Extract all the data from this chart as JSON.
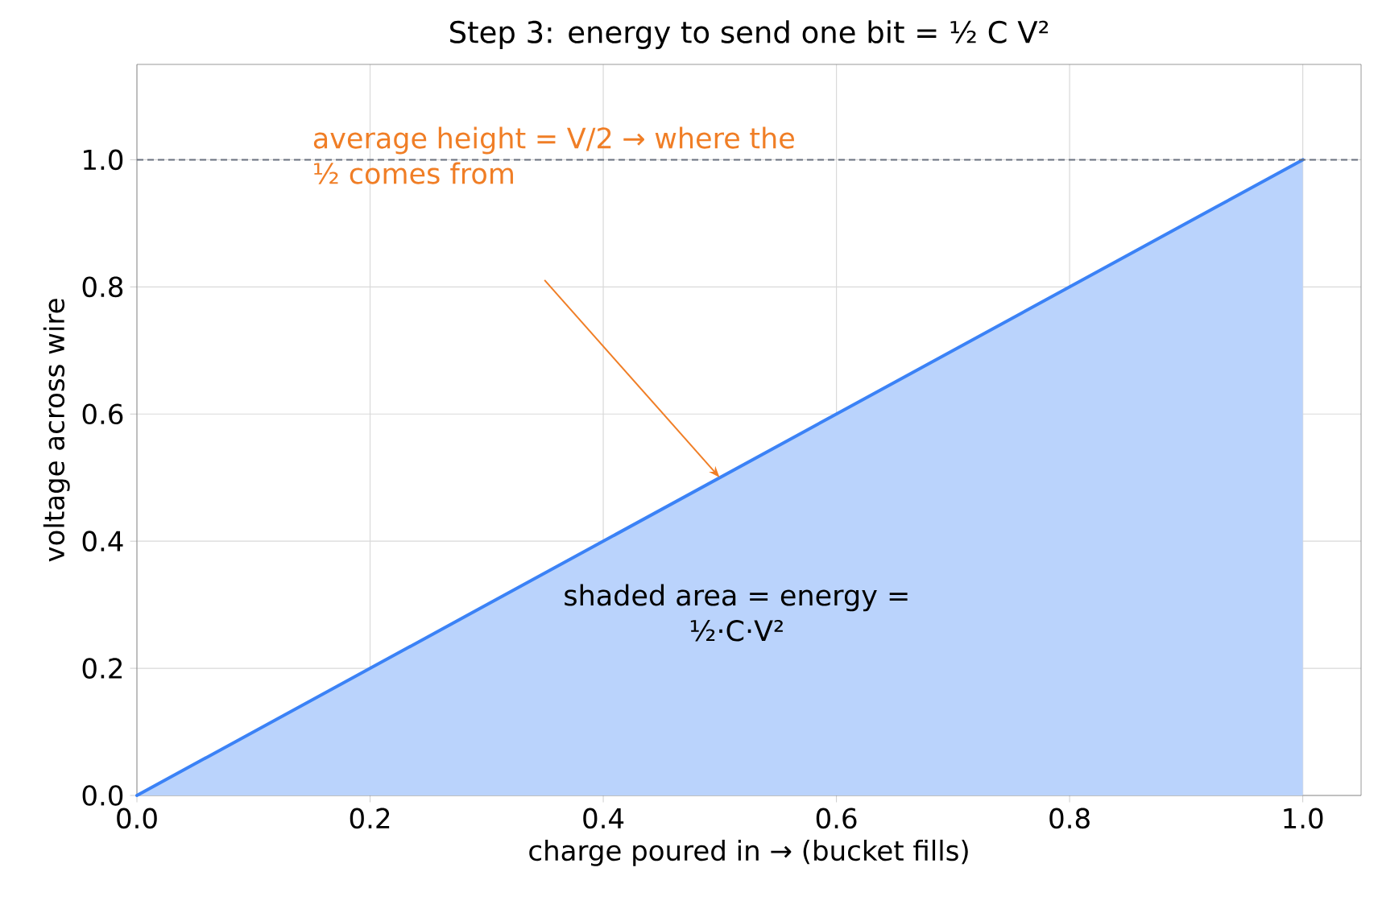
{
  "chart_data": {
    "type": "area",
    "title": "Step 3: energy to send one bit = ½ C V²",
    "xlabel": "charge poured in  →  (bucket fills)",
    "ylabel": "voltage across wire",
    "x": [
      0,
      1
    ],
    "series": [
      {
        "color": "#3b82f6",
        "values": [
          0,
          1
        ]
      }
    ],
    "xlim": [
      0,
      1.05
    ],
    "ylim": [
      0,
      1.15
    ],
    "xticks": [
      {
        "value": 0,
        "label": "0.0"
      },
      {
        "value": 0.2,
        "label": "0.2"
      },
      {
        "value": 0.4,
        "label": "0.4"
      },
      {
        "value": 0.6,
        "label": "0.6"
      },
      {
        "value": 0.8,
        "label": "0.8"
      },
      {
        "value": 1,
        "label": "1.0"
      }
    ],
    "yticks": [
      {
        "value": 0,
        "label": "0.0"
      },
      {
        "value": 0.2,
        "label": "0.2"
      },
      {
        "value": 0.4,
        "label": "0.4"
      },
      {
        "value": 0.6,
        "label": "0.6"
      },
      {
        "value": 0.8,
        "label": "0.8"
      },
      {
        "value": 1,
        "label": "1.0"
      }
    ],
    "grid": true,
    "ref_lines": [
      {
        "axis": "y",
        "value": 1.0,
        "color": "#6b7280",
        "line_style": "dashed"
      }
    ],
    "annotations": [
      "average height = V/2 → where the ½ comes from",
      "shaded area = energy = ½·C·V²"
    ]
  }
}
